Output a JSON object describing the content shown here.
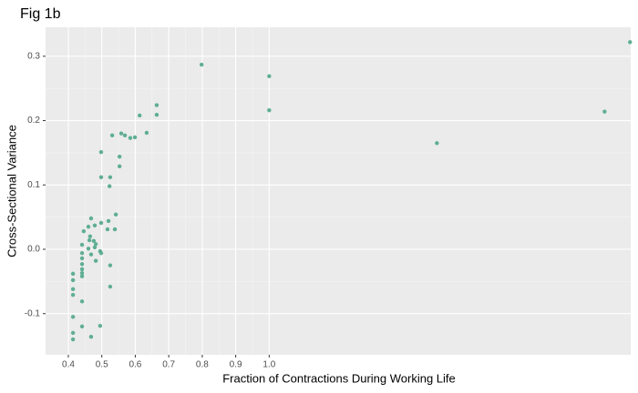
{
  "chart_data": {
    "type": "scatter",
    "title": "Fig 1b",
    "x_label": "Fraction of Contractions During Working Life",
    "y_label": "Cross-Sectional Variance",
    "color": "#5fae94",
    "grid": true,
    "xlim": [
      0.332,
      2.08
    ],
    "ylim": [
      -0.164,
      0.345
    ],
    "xticks": [
      0.4,
      0.5,
      0.6,
      0.7,
      0.8,
      0.9,
      {
        "value": 1.0,
        "label": "1.0"
      }
    ],
    "yticks": [
      -0.1,
      {
        "value": 0.0,
        "label": "0.0"
      },
      0.1,
      0.2,
      0.3
    ],
    "x": [
      2.078,
      2.002,
      1.501,
      0.798,
      1.0,
      1.0,
      0.664,
      0.664,
      0.613,
      0.634,
      0.531,
      0.558,
      0.569,
      0.585,
      0.599,
      0.498,
      0.553,
      0.553,
      0.498,
      0.525,
      0.523,
      0.542,
      0.468,
      0.52,
      0.498,
      0.46,
      0.479,
      0.446,
      0.517,
      0.539,
      0.465,
      0.463,
      0.476,
      0.482,
      0.441,
      0.479,
      0.46,
      0.495,
      0.498,
      0.441,
      0.468,
      0.441,
      0.441,
      0.482,
      0.525,
      0.441,
      0.441,
      0.414,
      0.414,
      0.441,
      0.525,
      0.414,
      0.414,
      0.441,
      0.414,
      0.441,
      0.495,
      0.414,
      0.414,
      0.468
    ],
    "values": [
      0.322,
      0.214,
      0.165,
      0.287,
      0.269,
      0.216,
      0.224,
      0.209,
      0.208,
      0.181,
      0.177,
      0.18,
      0.177,
      0.173,
      0.174,
      0.151,
      0.144,
      0.129,
      0.112,
      0.112,
      0.098,
      0.054,
      0.048,
      0.044,
      0.041,
      0.035,
      0.037,
      0.028,
      0.031,
      0.031,
      0.02,
      0.014,
      0.013,
      0.008,
      0.007,
      0.003,
      0.001,
      -0.003,
      -0.006,
      -0.006,
      -0.008,
      -0.014,
      -0.023,
      -0.018,
      -0.025,
      -0.031,
      -0.037,
      -0.038,
      -0.048,
      -0.042,
      -0.058,
      -0.062,
      -0.071,
      -0.081,
      -0.105,
      -0.12,
      -0.119,
      -0.13,
      -0.14,
      -0.136
    ]
  }
}
